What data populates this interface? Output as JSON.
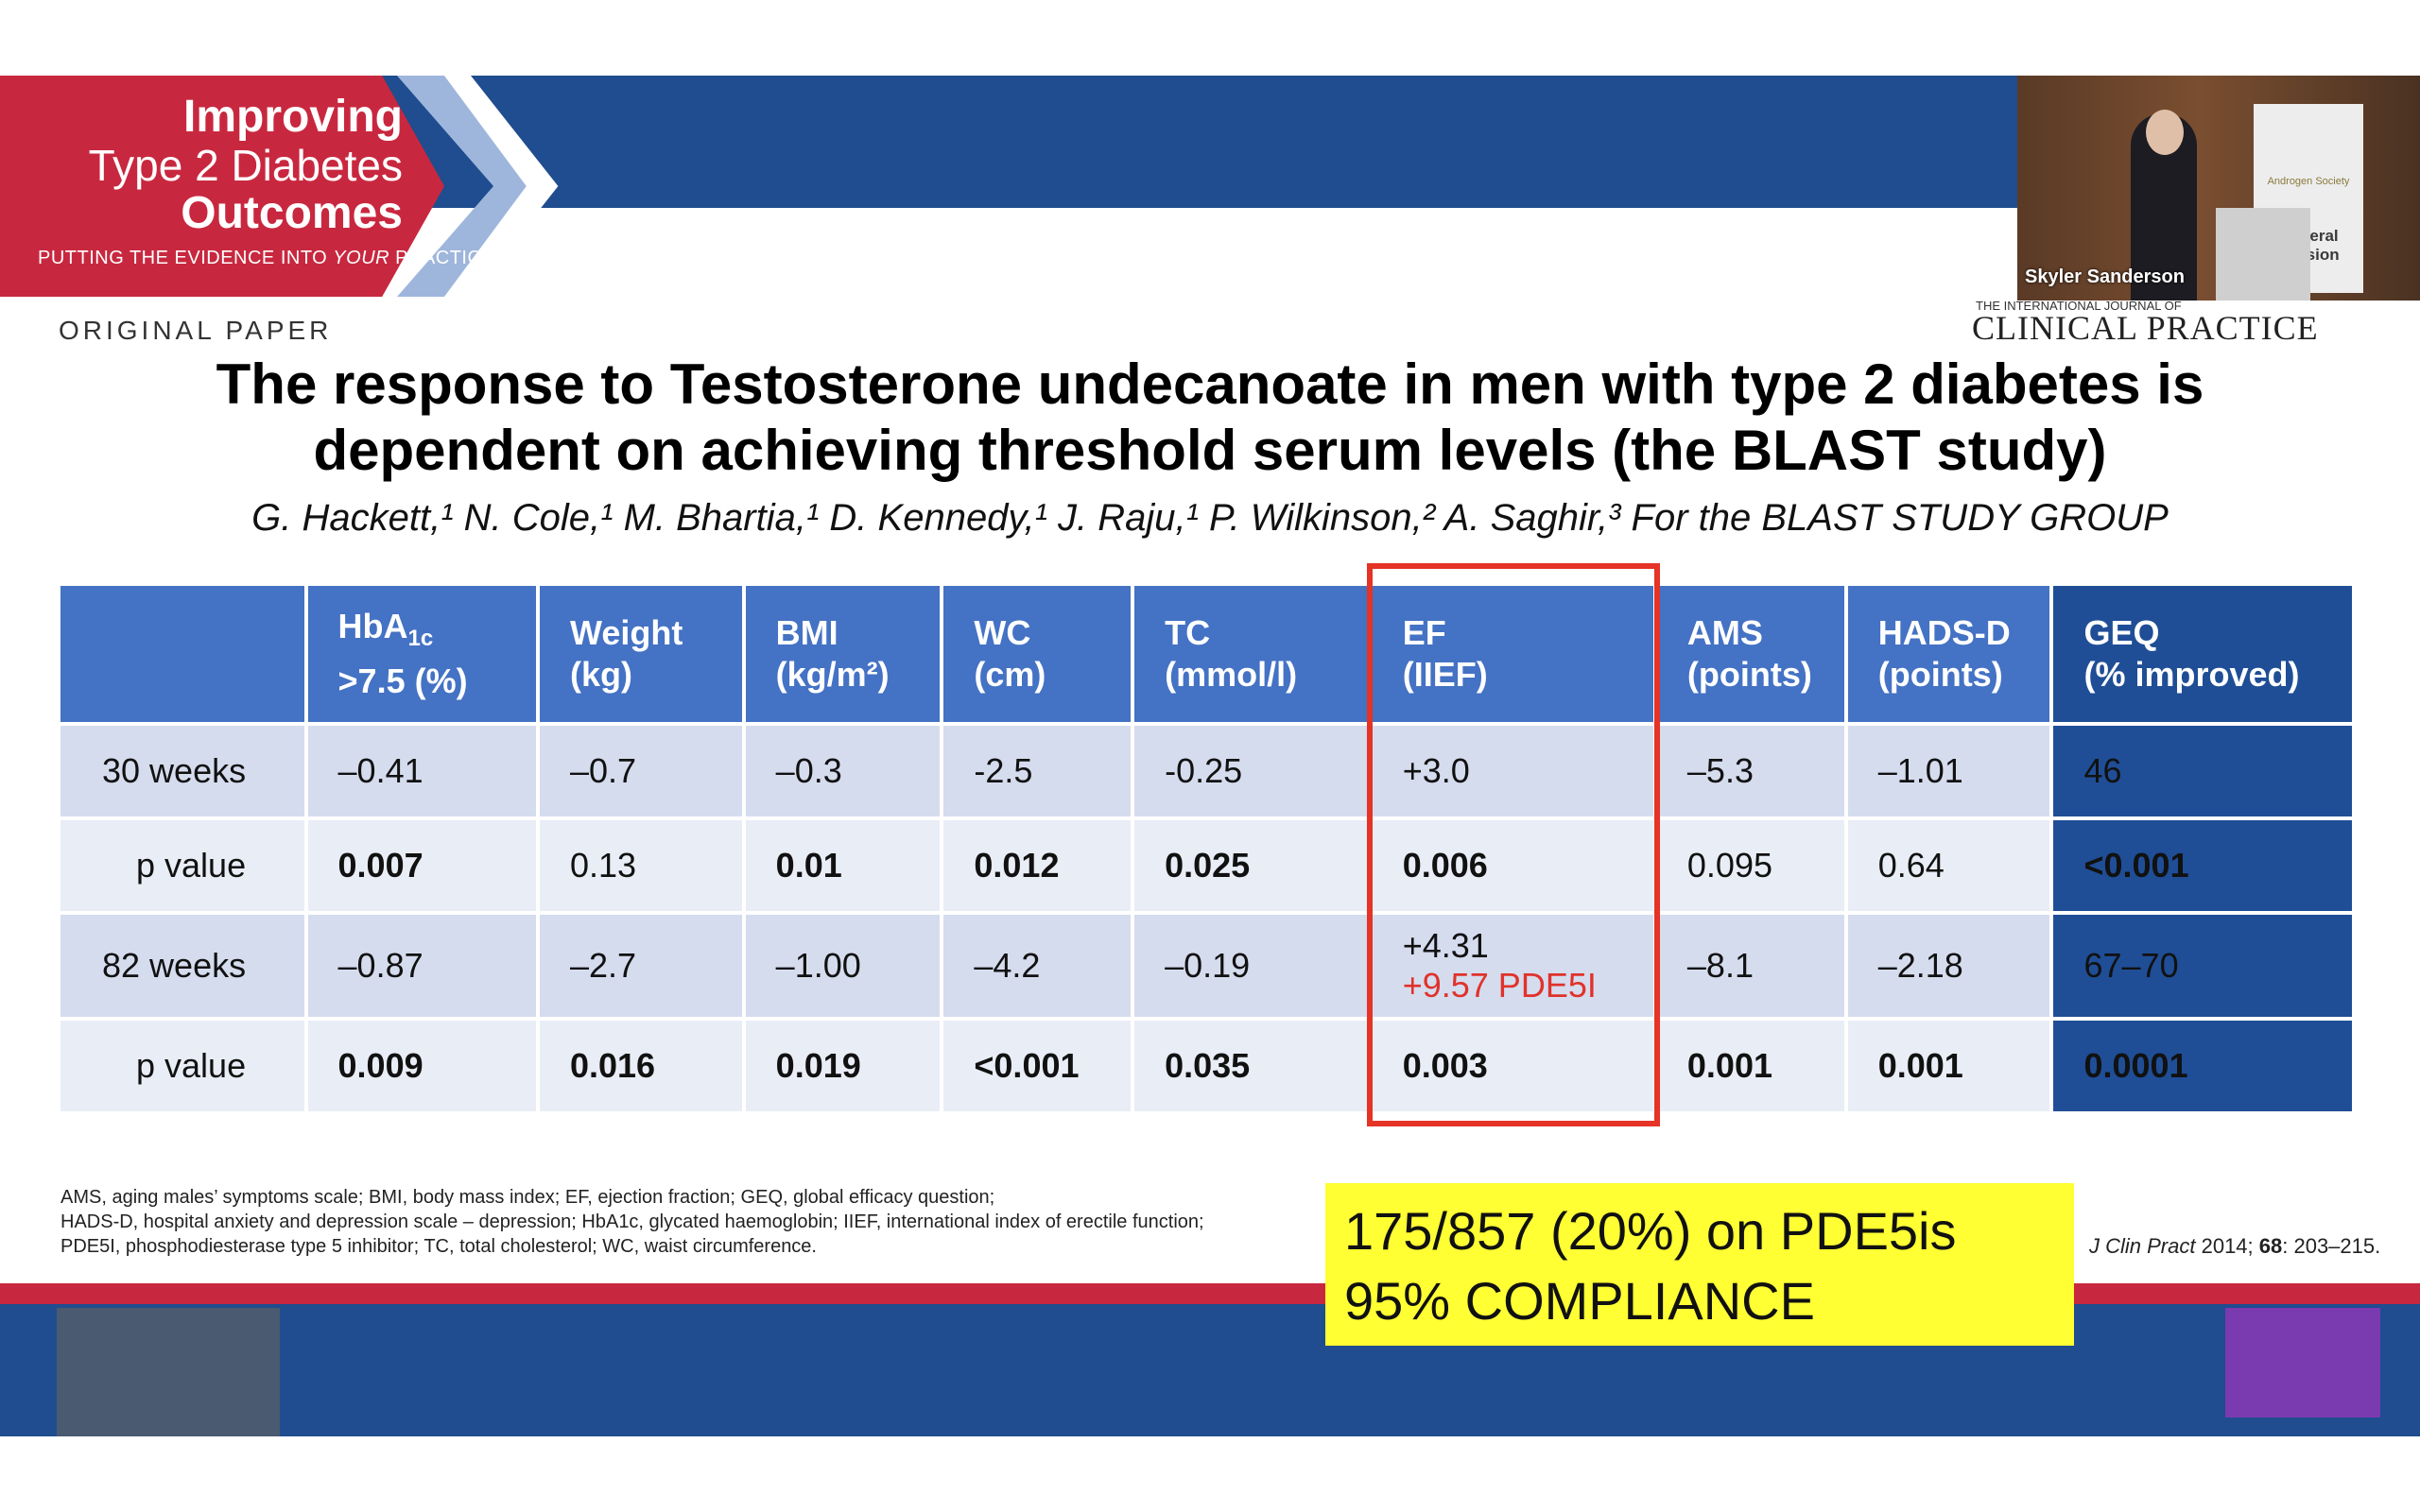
{
  "branding": {
    "line1": "Improving",
    "line2": "Type 2 Diabetes",
    "line3": "Outcomes",
    "tagline_start": "PUTTING THE EVIDENCE INTO ",
    "tagline_em": "YOUR",
    "tagline_end": " PRACTICE"
  },
  "video": {
    "speaker_name": "Skyler Sanderson",
    "banner_logo": "Androgen Society",
    "banner_text": "General Session"
  },
  "journal": {
    "small": "THE INTERNATIONAL JOURNAL OF",
    "name": "CLINICAL PRACTICE"
  },
  "section_label": "ORIGINAL PAPER",
  "title_line1": "The response to Testosterone undecanoate in men with type 2 diabetes is",
  "title_line2": "dependent on achieving threshold serum levels (the BLAST study)",
  "authors": "G. Hackett,¹ N. Cole,¹ M. Bhartia,¹ D. Kennedy,¹ J. Raju,¹ P. Wilkinson,² A. Saghir,³ For the BLAST STUDY GROUP",
  "table": {
    "headers": {
      "hba1c_a": "HbA",
      "hba1c_sub": "1c",
      "hba1c_b": ">7.5 (%)",
      "weight_a": "Weight",
      "weight_b": "(kg)",
      "bmi_a": "BMI",
      "bmi_b": "(kg/m²)",
      "wc_a": "WC",
      "wc_b": "(cm)",
      "tc_a": "TC",
      "tc_b": "(mmol/l)",
      "ef_a": "EF",
      "ef_b": "(IIEF)",
      "ams_a": "AMS",
      "ams_b": "(points)",
      "hads_a": "HADS-D",
      "hads_b": "(points)",
      "geq_a": "GEQ",
      "geq_b": "(% improved)"
    },
    "rows": [
      {
        "label": "30 weeks",
        "hba1c": "–0.41",
        "weight": "–0.7",
        "bmi": "–0.3",
        "wc": "-2.5",
        "tc": "-0.25",
        "ef": "+3.0",
        "ef_extra": "",
        "ams": "–5.3",
        "hads": "–1.01",
        "geq": "46"
      },
      {
        "label": "p value",
        "hba1c": "0.007",
        "weight": "0.13",
        "bmi": "0.01",
        "wc": "0.012",
        "tc": "0.025",
        "ef": "0.006",
        "ef_extra": "",
        "ams": "0.095",
        "hads": "0.64",
        "geq": "<0.001"
      },
      {
        "label": "82 weeks",
        "hba1c": "–0.87",
        "weight": "–2.7",
        "bmi": "–1.00",
        "wc": "–4.2",
        "tc": "–0.19",
        "ef": "+4.31",
        "ef_extra": "+9.57 PDE5I",
        "ams": "–8.1",
        "hads": "–2.18",
        "geq": "67–70"
      },
      {
        "label": "p value",
        "hba1c": "0.009",
        "weight": "0.016",
        "bmi": "0.019",
        "wc": "<0.001",
        "tc": "0.035",
        "ef": "0.003",
        "ef_extra": "",
        "ams": "0.001",
        "hads": "0.001",
        "geq": "0.0001"
      }
    ]
  },
  "footnote": {
    "line1": "AMS, aging males’ symptoms scale; BMI, body mass index; EF, ejection fraction; GEQ, global efficacy question;",
    "line2": "HADS-D, hospital anxiety and depression scale – depression; HbA1c, glycated haemoglobin; IIEF, international index of erectile function;",
    "line3": "PDE5I, phosphodiesterase type 5 inhibitor; TC, total cholesterol; WC, waist circumference."
  },
  "citation": {
    "journal": "J Clin Pract",
    "year": " 2014; ",
    "volume": "68",
    "pages": ": 203–215."
  },
  "callout": {
    "line1": "175/857 (20%) on PDE5is",
    "line2": "95% COMPLIANCE"
  },
  "colors": {
    "header_blue": "#1f4d8f",
    "brand_red": "#c8283f",
    "table_header": "#4472c4",
    "geq_column": "#1f4e96",
    "highlight_red": "#e53325",
    "callout_yellow": "#ffff33"
  }
}
